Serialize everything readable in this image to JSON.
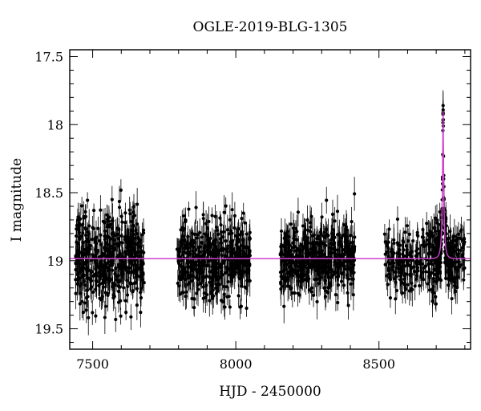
{
  "chart_data": {
    "type": "scatter",
    "title": "OGLE-2019-BLG-1305",
    "xlabel": "HJD - 2450000",
    "ylabel": "I magnitude",
    "xlim": [
      7420,
      8820
    ],
    "ylim": [
      17.45,
      19.65
    ],
    "y_inverted": true,
    "grid": false,
    "x_ticks": [
      7500,
      8000,
      8500
    ],
    "x_tick_labels": [
      "7500",
      "8000",
      "8500"
    ],
    "y_ticks": [
      17.5,
      18,
      18.5,
      19,
      19.5
    ],
    "y_tick_labels": [
      "17.5",
      "18",
      "18.5",
      "19",
      "19.5"
    ],
    "series": [
      {
        "kind": "observations",
        "marker": "filled-circle",
        "error_bars": true,
        "color": "#000000",
        "seasons": [
          {
            "x_start": 7440,
            "x_end": 7680,
            "baseline": 19.0,
            "scatter": 0.17
          },
          {
            "x_start": 7795,
            "x_end": 8050,
            "baseline": 19.0,
            "scatter": 0.14
          },
          {
            "x_start": 8155,
            "x_end": 8415,
            "baseline": 19.0,
            "scatter": 0.13
          },
          {
            "x_start": 8520,
            "x_end": 8800,
            "baseline": 19.0,
            "scatter": 0.12
          }
        ]
      },
      {
        "kind": "model",
        "line": "solid",
        "color": "#d23fd2",
        "baseline": 18.985,
        "peak_time": 8724,
        "peak_magnitude": 17.9,
        "x_start": 7420,
        "x_end": 8820
      }
    ]
  }
}
